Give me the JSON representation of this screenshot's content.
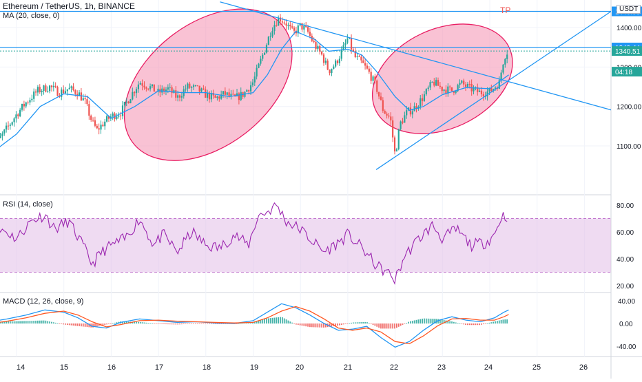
{
  "header": {
    "symbol_title": "Ethereum / TetherUS, 1h, BINANCE",
    "ma_label": "MA (20, close, 0)",
    "currency": "USDT"
  },
  "annotations": {
    "tp_label": "TP"
  },
  "price_pane": {
    "axis_ticks": [
      "1400.00",
      "1300.00",
      "1200.00",
      "1100.00"
    ],
    "price_tags": [
      {
        "label": "1440.93",
        "value": 1440.93,
        "color": "#2196f3"
      },
      {
        "label": "1349.44",
        "value": 1349.44,
        "color": "#2196f3"
      },
      {
        "label": "1340.51",
        "value": 1340.51,
        "color": "#26a69a"
      },
      {
        "label": "04:18",
        "value": 1310,
        "color": "#26a69a"
      }
    ]
  },
  "rsi_pane": {
    "label": "RSI (14, close)",
    "axis_ticks": [
      "80.00",
      "60.00",
      "40.00",
      "20.00"
    ]
  },
  "macd_pane": {
    "label": "MACD (12, 26, close, 9)",
    "axis_ticks": [
      "40.00",
      "0.00",
      "-40.00"
    ]
  },
  "x_axis": {
    "ticks": [
      "14",
      "15",
      "16",
      "17",
      "18",
      "19",
      "19",
      "20",
      "21",
      "22",
      "22",
      "23",
      "24",
      "25",
      "26"
    ]
  },
  "colors": {
    "up": "#26a69a",
    "down": "#ef5350",
    "ma": "#2196f3",
    "rsi": "#9c27b0",
    "macd": "#2196f3",
    "signal": "#ff5722",
    "trendline": "#2196f3",
    "ellipse_fill": "#f48fb1",
    "ellipse_stroke": "#e91e63",
    "rsi_band": "#e1bee7"
  },
  "chart_data": {
    "type": "candlestick",
    "timeframe": "1h",
    "price_axis_range": [
      1040,
      1460
    ],
    "price_axis_ticks": [
      1400,
      1300,
      1200,
      1100
    ],
    "rsi_axis_range": [
      17,
      85
    ],
    "rsi_axis_ticks": [
      80,
      60,
      40,
      20
    ],
    "rsi_band": [
      30,
      70
    ],
    "macd_axis_range": [
      -50,
      45
    ],
    "macd_axis_ticks": [
      40,
      0,
      -40
    ],
    "price_path": [
      [
        13.45,
        1080
      ],
      [
        13.6,
        1110
      ],
      [
        13.8,
        1145
      ],
      [
        14.0,
        1180
      ],
      [
        14.2,
        1210
      ],
      [
        14.45,
        1240
      ],
      [
        14.7,
        1250
      ],
      [
        14.9,
        1235
      ],
      [
        15.1,
        1245
      ],
      [
        15.3,
        1235
      ],
      [
        15.45,
        1210
      ],
      [
        15.6,
        1160
      ],
      [
        15.7,
        1140
      ],
      [
        15.85,
        1160
      ],
      [
        16.0,
        1175
      ],
      [
        16.2,
        1185
      ],
      [
        16.4,
        1225
      ],
      [
        16.6,
        1262
      ],
      [
        16.8,
        1250
      ],
      [
        17.0,
        1235
      ],
      [
        17.2,
        1245
      ],
      [
        17.4,
        1222
      ],
      [
        17.6,
        1250
      ],
      [
        17.8,
        1245
      ],
      [
        18.0,
        1230
      ],
      [
        18.2,
        1220
      ],
      [
        18.4,
        1232
      ],
      [
        18.6,
        1220
      ],
      [
        18.8,
        1232
      ],
      [
        19.0,
        1262
      ],
      [
        19.2,
        1330
      ],
      [
        19.4,
        1400
      ],
      [
        19.55,
        1425
      ],
      [
        19.7,
        1410
      ],
      [
        19.85,
        1385
      ],
      [
        20.0,
        1405
      ],
      [
        20.15,
        1390
      ],
      [
        20.3,
        1355
      ],
      [
        20.45,
        1330
      ],
      [
        20.6,
        1290
      ],
      [
        20.75,
        1310
      ],
      [
        20.9,
        1345
      ],
      [
        21.0,
        1372
      ],
      [
        21.15,
        1325
      ],
      [
        21.3,
        1310
      ],
      [
        21.45,
        1285
      ],
      [
        21.6,
        1250
      ],
      [
        21.75,
        1190
      ],
      [
        21.9,
        1170
      ],
      [
        22.0,
        1075
      ],
      [
        22.1,
        1155
      ],
      [
        22.25,
        1185
      ],
      [
        22.4,
        1195
      ],
      [
        22.6,
        1225
      ],
      [
        22.8,
        1262
      ],
      [
        23.0,
        1245
      ],
      [
        23.2,
        1240
      ],
      [
        23.4,
        1258
      ],
      [
        23.6,
        1245
      ],
      [
        23.8,
        1235
      ],
      [
        24.0,
        1238
      ],
      [
        24.2,
        1260
      ],
      [
        24.3,
        1325
      ],
      [
        24.4,
        1345
      ]
    ],
    "ma_path": [
      [
        13.45,
        1080
      ],
      [
        14.0,
        1130
      ],
      [
        14.5,
        1200
      ],
      [
        15.0,
        1232
      ],
      [
        15.5,
        1225
      ],
      [
        16.0,
        1170
      ],
      [
        16.5,
        1200
      ],
      [
        17.0,
        1240
      ],
      [
        17.5,
        1235
      ],
      [
        18.0,
        1235
      ],
      [
        18.5,
        1225
      ],
      [
        19.0,
        1235
      ],
      [
        19.3,
        1280
      ],
      [
        19.6,
        1345
      ],
      [
        19.9,
        1390
      ],
      [
        20.3,
        1370
      ],
      [
        20.6,
        1340
      ],
      [
        21.0,
        1345
      ],
      [
        21.3,
        1330
      ],
      [
        21.6,
        1290
      ],
      [
        22.0,
        1225
      ],
      [
        22.3,
        1190
      ],
      [
        22.6,
        1200
      ],
      [
        23.0,
        1230
      ],
      [
        23.5,
        1248
      ],
      [
        24.0,
        1245
      ],
      [
        24.4,
        1280
      ]
    ],
    "rsi_path": [
      [
        13.45,
        55
      ],
      [
        13.7,
        62
      ],
      [
        14.0,
        55
      ],
      [
        14.3,
        68
      ],
      [
        14.6,
        73
      ],
      [
        14.8,
        62
      ],
      [
        15.1,
        68
      ],
      [
        15.4,
        50
      ],
      [
        15.6,
        36
      ],
      [
        15.8,
        45
      ],
      [
        16.0,
        50
      ],
      [
        16.3,
        55
      ],
      [
        16.6,
        70
      ],
      [
        16.9,
        50
      ],
      [
        17.1,
        58
      ],
      [
        17.4,
        45
      ],
      [
        17.7,
        60
      ],
      [
        18.0,
        50
      ],
      [
        18.3,
        48
      ],
      [
        18.6,
        58
      ],
      [
        18.9,
        50
      ],
      [
        19.1,
        72
      ],
      [
        19.3,
        75
      ],
      [
        19.5,
        80
      ],
      [
        19.7,
        68
      ],
      [
        20.0,
        62
      ],
      [
        20.2,
        55
      ],
      [
        20.5,
        45
      ],
      [
        20.8,
        52
      ],
      [
        21.0,
        58
      ],
      [
        21.3,
        48
      ],
      [
        21.6,
        35
      ],
      [
        21.9,
        28
      ],
      [
        22.0,
        24
      ],
      [
        22.2,
        42
      ],
      [
        22.5,
        55
      ],
      [
        22.8,
        65
      ],
      [
        23.0,
        55
      ],
      [
        23.3,
        62
      ],
      [
        23.6,
        50
      ],
      [
        23.9,
        52
      ],
      [
        24.1,
        58
      ],
      [
        24.25,
        72
      ],
      [
        24.4,
        72
      ]
    ],
    "macd_path": [
      [
        13.45,
        3
      ],
      [
        13.8,
        8
      ],
      [
        14.2,
        15
      ],
      [
        14.6,
        24
      ],
      [
        15.0,
        20
      ],
      [
        15.3,
        10
      ],
      [
        15.6,
        -5
      ],
      [
        15.9,
        -8
      ],
      [
        16.2,
        2
      ],
      [
        16.6,
        8
      ],
      [
        17.0,
        5
      ],
      [
        17.4,
        2
      ],
      [
        17.8,
        3
      ],
      [
        18.2,
        1
      ],
      [
        18.6,
        0
      ],
      [
        19.0,
        5
      ],
      [
        19.3,
        20
      ],
      [
        19.6,
        35
      ],
      [
        19.9,
        28
      ],
      [
        20.2,
        15
      ],
      [
        20.5,
        0
      ],
      [
        20.8,
        -12
      ],
      [
        21.1,
        -10
      ],
      [
        21.4,
        -5
      ],
      [
        21.7,
        -25
      ],
      [
        22.0,
        -42
      ],
      [
        22.3,
        -32
      ],
      [
        22.6,
        -12
      ],
      [
        22.9,
        5
      ],
      [
        23.2,
        12
      ],
      [
        23.5,
        6
      ],
      [
        23.8,
        3
      ],
      [
        24.1,
        10
      ],
      [
        24.3,
        20
      ],
      [
        24.4,
        24
      ]
    ],
    "signal_path": [
      [
        13.45,
        0
      ],
      [
        13.8,
        4
      ],
      [
        14.2,
        10
      ],
      [
        14.6,
        18
      ],
      [
        15.0,
        22
      ],
      [
        15.3,
        15
      ],
      [
        15.6,
        3
      ],
      [
        15.9,
        -6
      ],
      [
        16.2,
        -2
      ],
      [
        16.6,
        5
      ],
      [
        17.0,
        6
      ],
      [
        17.4,
        4
      ],
      [
        17.8,
        3
      ],
      [
        18.2,
        2
      ],
      [
        18.6,
        1
      ],
      [
        19.0,
        2
      ],
      [
        19.3,
        10
      ],
      [
        19.6,
        22
      ],
      [
        19.9,
        30
      ],
      [
        20.2,
        22
      ],
      [
        20.5,
        8
      ],
      [
        20.8,
        -8
      ],
      [
        21.1,
        -12
      ],
      [
        21.4,
        -8
      ],
      [
        21.7,
        -15
      ],
      [
        22.0,
        -32
      ],
      [
        22.3,
        -36
      ],
      [
        22.6,
        -22
      ],
      [
        22.9,
        -4
      ],
      [
        23.2,
        8
      ],
      [
        23.5,
        9
      ],
      [
        23.8,
        6
      ],
      [
        24.1,
        6
      ],
      [
        24.3,
        12
      ],
      [
        24.4,
        16
      ]
    ],
    "trendlines": [
      {
        "name": "descending",
        "from": [
          18.3,
          1465
        ],
        "to": [
          26.6,
          1190
        ]
      },
      {
        "name": "ascending",
        "from": [
          21.6,
          1040
        ],
        "to": [
          26.8,
          1460
        ]
      }
    ],
    "horizontal_lines": [
      1440.93,
      1349.44
    ],
    "ellipses": [
      {
        "cx": 18.05,
        "cy": 1255,
        "rx_days": 2.45,
        "ry_price": 215,
        "rotate_deg": -38
      },
      {
        "cx": 23.0,
        "cy": 1270,
        "rx_days": 1.9,
        "ry_price": 175,
        "rotate_deg": -25
      }
    ]
  }
}
